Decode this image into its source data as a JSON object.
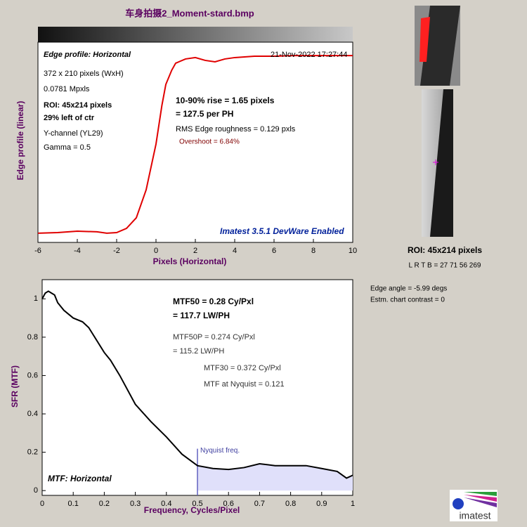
{
  "title": "车身拍摄2_Moment-stard.bmp",
  "chart_data": [
    {
      "type": "line",
      "xlabel": "Pixels (Horizontal)",
      "ylabel": "Edge profile (linear)",
      "x": [
        -6,
        -5,
        -4,
        -3,
        -2.5,
        -2,
        -1.5,
        -1,
        -0.5,
        0,
        0.3,
        0.5,
        0.8,
        1,
        1.5,
        2,
        2.5,
        3,
        3.5,
        4,
        5,
        6,
        7,
        8,
        9,
        10
      ],
      "values": [
        0.046,
        0.049,
        0.056,
        0.053,
        0.046,
        0.049,
        0.07,
        0.123,
        0.263,
        0.491,
        0.684,
        0.789,
        0.86,
        0.895,
        0.916,
        0.923,
        0.909,
        0.902,
        0.916,
        0.923,
        0.93,
        0.93,
        0.933,
        0.933,
        0.933,
        0.933
      ],
      "color": "#e00000",
      "xlim": [
        -6,
        10
      ],
      "xticks": [
        -6,
        -4,
        -2,
        0,
        2,
        4,
        6,
        8,
        10
      ],
      "ylim": [
        0,
        1
      ],
      "annotations": [
        "Edge profile: Horizontal",
        "21-Nov-2022 17:27:44",
        "372 x 210 pixels (WxH)",
        "0.0781 Mpxls",
        "ROI:  45x214 pixels",
        "29% left of ctr",
        "Y-channel  (YL29)",
        "Gamma = 0.5",
        "10-90% rise = 1.65 pixels",
        "= 127.5 per PH",
        "RMS Edge roughness = 0.129 pxls",
        "Overshoot = 6.84%",
        "Imatest 3.5.1 DevWare Enabled"
      ]
    },
    {
      "type": "line",
      "xlabel": "Frequency, Cycles/Pixel",
      "ylabel": "SFR (MTF)",
      "x": [
        0,
        0.01,
        0.02,
        0.03,
        0.04,
        0.05,
        0.07,
        0.1,
        0.13,
        0.15,
        0.2,
        0.22,
        0.25,
        0.3,
        0.35,
        0.4,
        0.45,
        0.5,
        0.55,
        0.6,
        0.65,
        0.7,
        0.75,
        0.8,
        0.85,
        0.9,
        0.95,
        0.98,
        1
      ],
      "values": [
        1.0,
        1.03,
        1.04,
        1.03,
        1.02,
        0.98,
        0.94,
        0.9,
        0.88,
        0.85,
        0.72,
        0.68,
        0.6,
        0.45,
        0.36,
        0.28,
        0.19,
        0.13,
        0.115,
        0.11,
        0.12,
        0.14,
        0.13,
        0.13,
        0.13,
        0.115,
        0.1,
        0.065,
        0.08
      ],
      "color": "#000000",
      "xlim": [
        0,
        1
      ],
      "xticks": [
        0,
        0.1,
        0.2,
        0.3,
        0.4,
        0.5,
        0.6,
        0.7,
        0.8,
        0.9,
        1
      ],
      "ylim": [
        -0.025,
        1.1
      ],
      "yticks": [
        0,
        0.2,
        0.4,
        0.6,
        0.8,
        1
      ],
      "nyquist": {
        "value": 0.5,
        "label": "Nyquist freq."
      },
      "annotations": [
        "MTF50 = 0.28 Cy/Pxl",
        "= 117.7 LW/PH",
        "MTF50P = 0.274 Cy/Pxl",
        "= 115.2 LW/PH",
        "MTF30 = 0.372 Cy/Pxl",
        "MTF at Nyquist = 0.121",
        "MTF: Horizontal"
      ]
    }
  ],
  "side": {
    "roi": "ROI:  45x214 pixels",
    "lrtb": "L R  T B = 27 71   56 269",
    "edge_angle": "Edge angle = -5.99 degs",
    "contrast": "Estm. chart contrast = 0"
  },
  "logo": "imatest"
}
